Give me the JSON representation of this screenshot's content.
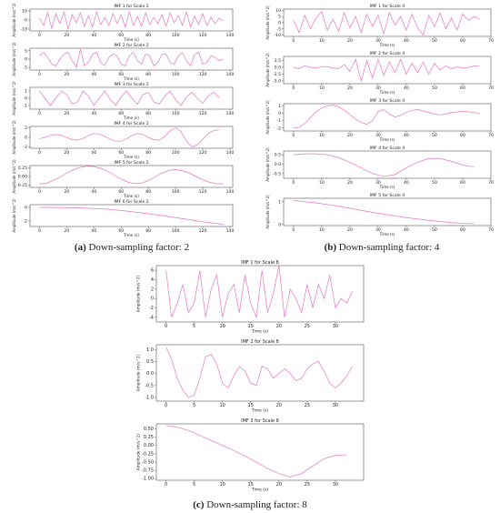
{
  "captions": [
    {
      "label": "(a)",
      "text": "Down-sampling factor: 2"
    },
    {
      "label": "(b)",
      "text": "Down-sampling factor: 4"
    },
    {
      "label": "(c)",
      "text": "Down-sampling factor: 8"
    }
  ],
  "chart_data": [
    {
      "type": "line",
      "title": "IMF 1 for Scale 2",
      "x_label": "Time (s)",
      "y_label": "Amplitude (m/s^2)",
      "color": "#e377c2",
      "x": [
        0,
        3,
        6,
        9,
        12,
        15,
        18,
        21,
        24,
        27,
        30,
        33,
        36,
        39,
        42,
        45,
        48,
        51,
        54,
        57,
        60,
        63,
        66,
        69,
        72,
        75,
        78,
        81,
        84,
        87,
        90,
        93,
        96,
        99,
        102,
        105,
        108,
        111,
        114,
        117,
        120,
        123,
        126,
        129,
        132,
        135
      ],
      "values": [
        2,
        -6,
        8,
        -9,
        7,
        -4,
        9,
        -10,
        6,
        -3,
        8,
        -7,
        5,
        -8,
        9,
        -5,
        3,
        -6,
        7,
        -4,
        6,
        -8,
        9,
        -6,
        4,
        -7,
        8,
        -5,
        3,
        -4,
        6,
        -7,
        8,
        -3,
        5,
        -6,
        9,
        -8,
        4,
        -5,
        7,
        -6,
        3,
        -4,
        2,
        -1
      ],
      "xlim": [
        -7,
        142
      ],
      "xticks": [
        0,
        20,
        40,
        60,
        80,
        100,
        120,
        140
      ],
      "ylim": [
        -12,
        12
      ],
      "yticks": [
        -10,
        0,
        10
      ]
    },
    {
      "type": "line",
      "title": "IMF 2 for Scale 2",
      "x_label": "Time (s)",
      "y_label": "Amplitude (m/s^2)",
      "color": "#e377c2",
      "x": [
        0,
        3,
        6,
        9,
        12,
        15,
        18,
        21,
        24,
        27,
        30,
        33,
        36,
        39,
        42,
        45,
        48,
        51,
        54,
        57,
        60,
        63,
        66,
        69,
        72,
        75,
        78,
        81,
        84,
        87,
        90,
        93,
        96,
        99,
        102,
        105,
        108,
        111,
        114,
        117,
        120,
        123,
        126,
        129,
        132,
        135
      ],
      "values": [
        2,
        4,
        1,
        -3,
        -4,
        0,
        3,
        4,
        -1,
        -5,
        6,
        -4,
        -2,
        3,
        4,
        -2,
        -4,
        1,
        3,
        2,
        -3,
        -4,
        2,
        4,
        -1,
        -3,
        3,
        2,
        -4,
        -2,
        3,
        3,
        -2,
        -3,
        2,
        4,
        -1,
        -4,
        3,
        4,
        -3,
        -2,
        2,
        1,
        -1,
        0
      ],
      "xlim": [
        -7,
        142
      ],
      "xticks": [
        0,
        20,
        40,
        60,
        80,
        100,
        120,
        140
      ],
      "ylim": [
        -6.5,
        6.5
      ],
      "yticks": [
        -5,
        0,
        5
      ]
    },
    {
      "type": "line",
      "title": "IMF 3 for Scale 2",
      "x_label": "Time (s)",
      "y_label": "Amplitude (m/s^2)",
      "color": "#e377c2",
      "x": [
        0,
        4,
        8,
        12,
        16,
        20,
        24,
        28,
        32,
        36,
        40,
        44,
        48,
        52,
        56,
        60,
        64,
        68,
        72,
        76,
        80,
        84,
        88,
        92,
        96,
        100,
        104,
        108,
        112,
        116,
        120,
        124,
        128,
        132
      ],
      "values": [
        1,
        0,
        -1,
        0,
        1,
        0.5,
        -0.8,
        -0.5,
        1,
        0.3,
        -1,
        0,
        1,
        -0.2,
        -1,
        0.2,
        1,
        0,
        -0.8,
        0.5,
        0.8,
        -0.5,
        -0.8,
        0.3,
        1,
        -0.2,
        -1,
        0.2,
        0.8,
        0,
        -0.7,
        0.3,
        0.8,
        0.1
      ],
      "xlim": [
        -7,
        142
      ],
      "xticks": [
        0,
        20,
        40,
        60,
        80,
        100,
        120,
        140
      ],
      "ylim": [
        -1.5,
        1.5
      ],
      "yticks": [
        -1,
        0,
        1
      ]
    },
    {
      "type": "line",
      "title": "IMF 4 for Scale 2",
      "x_label": "Time (s)",
      "y_label": "Amplitude (m/s^2)",
      "color": "#e377c2",
      "x": [
        0,
        4,
        8,
        12,
        16,
        20,
        24,
        28,
        32,
        36,
        40,
        44,
        48,
        52,
        56,
        60,
        64,
        68,
        72,
        76,
        80,
        84,
        88,
        92,
        96,
        100,
        104,
        108,
        112,
        116,
        120,
        124,
        128,
        132
      ],
      "values": [
        -0.3,
        0,
        0.4,
        0.6,
        0.4,
        0,
        -0.5,
        -0.6,
        -0.2,
        0.4,
        0.8,
        0.7,
        0.2,
        -0.4,
        -0.8,
        -0.8,
        -0.3,
        0.4,
        0.8,
        0.6,
        0,
        -0.5,
        -0.6,
        0.2,
        1.4,
        2,
        1.2,
        -0.8,
        -2,
        -1.6,
        -0.4,
        0.8,
        1.4,
        1.6
      ],
      "xlim": [
        -7,
        142
      ],
      "xticks": [
        0,
        20,
        40,
        60,
        80,
        100,
        120,
        140
      ],
      "ylim": [
        -2.3,
        2.3
      ],
      "yticks": [
        -2,
        0,
        2
      ]
    },
    {
      "type": "line",
      "title": "IMF 5 for Scale 2",
      "x_label": "Time (s)",
      "y_label": "Amplitude (m/s^2)",
      "color": "#e377c2",
      "x": [
        0,
        5,
        10,
        15,
        20,
        25,
        30,
        35,
        40,
        45,
        50,
        55,
        60,
        65,
        70,
        75,
        80,
        85,
        90,
        95,
        100,
        105,
        110,
        115,
        120,
        125,
        130,
        135
      ],
      "values": [
        -0.22,
        -0.2,
        -0.12,
        -0.02,
        0.1,
        0.2,
        0.27,
        0.3,
        0.29,
        0.24,
        0.15,
        0.04,
        -0.08,
        -0.17,
        -0.21,
        -0.2,
        -0.12,
        -0.01,
        0.1,
        0.18,
        0.2,
        0.17,
        0.1,
        0,
        -0.1,
        -0.17,
        -0.21,
        -0.22
      ],
      "xlim": [
        -7,
        142
      ],
      "xticks": [
        0,
        20,
        40,
        60,
        80,
        100,
        120,
        140
      ],
      "ylim": [
        -0.32,
        0.32
      ],
      "yticks": [
        {
          "value": -0.25,
          "label": "-0.25"
        },
        {
          "value": 0,
          "label": "0.00"
        },
        0.25
      ]
    },
    {
      "type": "line",
      "title": "IMF 6 for Scale 2",
      "x_label": "Time (s)",
      "y_label": "Amplitude (m/s^2)",
      "color": "#e377c2",
      "x": [
        0,
        15,
        30,
        45,
        60,
        75,
        90,
        105,
        120,
        135
      ],
      "values": [
        0,
        -0.02,
        -0.08,
        -0.2,
        -0.45,
        -0.8,
        -1.2,
        -1.65,
        -2.1,
        -2.5
      ],
      "xlim": [
        -7,
        142
      ],
      "xticks": [
        0,
        20,
        40,
        60,
        80,
        100,
        120,
        140
      ],
      "ylim": [
        -2.8,
        0.4
      ],
      "yticks": [
        -2,
        0
      ]
    },
    {
      "type": "line",
      "title": "IMF 1 for Scale 4",
      "x_label": "Time (s)",
      "y_label": "Amplitude (m/s^2)",
      "color": "#e377c2",
      "x": [
        0,
        2,
        4,
        6,
        8,
        10,
        12,
        14,
        16,
        18,
        20,
        22,
        24,
        26,
        28,
        30,
        32,
        34,
        36,
        38,
        40,
        42,
        44,
        46,
        48,
        50,
        52,
        54,
        56,
        58,
        60,
        62,
        64,
        66
      ],
      "values": [
        2,
        -8,
        6,
        -5,
        4,
        9,
        -6,
        3,
        -7,
        8,
        -4,
        5,
        -8,
        7,
        -3,
        6,
        -9,
        8,
        -2,
        5,
        -6,
        7,
        -4,
        -10,
        6,
        -3,
        8,
        -5,
        4,
        -6,
        7,
        2,
        5,
        3
      ],
      "xlim": [
        -3.5,
        70
      ],
      "xticks": [
        0,
        10,
        20,
        30,
        40,
        50,
        60,
        70
      ],
      "ylim": [
        -11,
        11
      ],
      "yticks": [
        -10,
        -5,
        0,
        5,
        10
      ]
    },
    {
      "type": "line",
      "title": "IMF 2 for Scale 4",
      "x_label": "Time (s)",
      "y_label": "Amplitude (m/s^2)",
      "color": "#e377c2",
      "x": [
        0,
        2,
        4,
        6,
        8,
        10,
        12,
        14,
        16,
        18,
        20,
        22,
        24,
        26,
        28,
        30,
        32,
        34,
        36,
        38,
        40,
        42,
        44,
        46,
        48,
        50,
        52,
        54,
        56,
        58,
        60,
        62,
        64,
        66
      ],
      "values": [
        0,
        -0.5,
        0.5,
        0,
        -0.3,
        0.3,
        0.2,
        -0.3,
        -0.5,
        1,
        -1.5,
        3,
        -5,
        2.5,
        -4,
        3,
        -3,
        2,
        -2,
        3,
        -2.5,
        1.5,
        -2,
        2,
        -2.5,
        1.5,
        -1,
        0.5,
        -0.5,
        0.2,
        -0.3,
        0,
        0.5,
        0.6
      ],
      "xlim": [
        -3.5,
        70
      ],
      "xticks": [
        0,
        10,
        20,
        30,
        40,
        50,
        60,
        70
      ],
      "ylim": [
        -6,
        4
      ],
      "yticks": [
        {
          "value": -5,
          "label": "-5.0"
        },
        -2.5,
        {
          "value": 0,
          "label": "0.0"
        },
        2.5
      ]
    },
    {
      "type": "line",
      "title": "IMF 3 for Scale 4",
      "x_label": "Time (s)",
      "y_label": "Amplitude (m/s^2)",
      "color": "#e377c2",
      "x": [
        0,
        2,
        4,
        6,
        8,
        10,
        12,
        14,
        16,
        18,
        20,
        22,
        24,
        26,
        28,
        30,
        32,
        34,
        36,
        38,
        40,
        42,
        44,
        46,
        48,
        50,
        52,
        54,
        56,
        58,
        60,
        62,
        64,
        66
      ],
      "values": [
        -2,
        -1.9,
        -1.4,
        -0.6,
        0.2,
        0.7,
        1,
        1.1,
        0.9,
        0.4,
        -0.2,
        -0.8,
        -1.2,
        -1.5,
        -1,
        0.2,
        0.5,
        -0.1,
        -0.5,
        -0.3,
        0.1,
        0.4,
        0.5,
        0.3,
        0.1,
        -0.1,
        -0.2,
        -0.1,
        0.1,
        0.2,
        0.3,
        0.2,
        0.1,
        0
      ],
      "xlim": [
        -3.5,
        70
      ],
      "xticks": [
        0,
        10,
        20,
        30,
        40,
        50,
        60,
        70
      ],
      "ylim": [
        -2.4,
        1.3
      ],
      "yticks": [
        -2,
        -1,
        0,
        1
      ]
    },
    {
      "type": "line",
      "title": "IMF 4 for Scale 4",
      "x_label": "Time (s)",
      "y_label": "Amplitude (m/s^2)",
      "color": "#e377c2",
      "x": [
        0,
        4,
        8,
        12,
        16,
        20,
        24,
        28,
        32,
        36,
        40,
        44,
        48,
        52,
        56,
        60,
        64
      ],
      "values": [
        0.5,
        0.55,
        0.55,
        0.5,
        0.35,
        0.1,
        -0.2,
        -0.5,
        -0.65,
        -0.55,
        -0.2,
        0.1,
        0.3,
        0.3,
        0.15,
        -0.05,
        -0.15
      ],
      "xlim": [
        -3.5,
        70
      ],
      "xticks": [
        0,
        10,
        20,
        30,
        40,
        50,
        60,
        70
      ],
      "ylim": [
        -0.75,
        0.7
      ],
      "yticks": [
        -0.5,
        {
          "value": 0,
          "label": "0.0"
        },
        0.5
      ]
    },
    {
      "type": "line",
      "title": "IMF 5 for Scale 4",
      "x_label": "Time (s)",
      "y_label": "Amplitude (m/s^2)",
      "color": "#e377c2",
      "x": [
        0,
        8,
        16,
        24,
        32,
        40,
        48,
        56,
        64
      ],
      "values": [
        1.05,
        0.95,
        0.8,
        0.62,
        0.45,
        0.3,
        0.18,
        0.08,
        0.03
      ],
      "xlim": [
        -3.5,
        70
      ],
      "xticks": [
        0,
        10,
        20,
        30,
        40,
        50,
        60,
        70
      ],
      "ylim": [
        -0.05,
        1.15
      ],
      "yticks": [
        0,
        1
      ]
    },
    {
      "type": "line",
      "title": "IMF 1 for Scale 8",
      "x_label": "Time (s)",
      "y_label": "Amplitude (m/s^2)",
      "color": "#e377c2",
      "x": [
        0,
        1,
        2,
        3,
        4,
        5,
        6,
        7,
        8,
        9,
        10,
        11,
        12,
        13,
        14,
        15,
        16,
        17,
        18,
        19,
        20,
        21,
        22,
        23,
        24,
        25,
        26,
        27,
        28,
        29,
        30,
        31,
        32,
        33
      ],
      "values": [
        6,
        -4,
        -1,
        3,
        -3,
        -1,
        6,
        -4,
        2,
        5,
        -4,
        1,
        3,
        -3,
        5,
        -1,
        -4,
        6,
        -3,
        1,
        7,
        -4,
        2,
        0,
        -3,
        3,
        -2,
        3,
        0,
        5,
        -2,
        0,
        -1,
        1.5
      ],
      "xlim": [
        -1.7,
        35
      ],
      "xticks": [
        0,
        5,
        10,
        15,
        20,
        25,
        30
      ],
      "ylim": [
        -5,
        7
      ],
      "yticks": [
        -4,
        -2,
        0,
        2,
        4,
        6
      ]
    },
    {
      "type": "line",
      "title": "IMF 2 for Scale 8",
      "x_label": "Time (s)",
      "y_label": "Amplitude (m/s^2)",
      "color": "#e377c2",
      "x": [
        0,
        1,
        2,
        3,
        4,
        5,
        6,
        7,
        8,
        9,
        10,
        11,
        12,
        13,
        14,
        15,
        16,
        17,
        18,
        19,
        20,
        21,
        22,
        23,
        24,
        25,
        26,
        27,
        28,
        29,
        30,
        31,
        32,
        33
      ],
      "values": [
        1.1,
        0.6,
        -0.2,
        -0.7,
        -1,
        -0.9,
        -0.2,
        0.7,
        0.8,
        0.4,
        -0.4,
        -0.6,
        -0.1,
        0.3,
        0.1,
        -0.4,
        -0.5,
        0.3,
        0.2,
        -0.2,
        0,
        0.2,
        0,
        -0.3,
        -0.2,
        0.2,
        0.4,
        0.5,
        0.1,
        -0.4,
        -0.6,
        -0.4,
        -0.1,
        0.3
      ],
      "xlim": [
        -1.7,
        35
      ],
      "xticks": [
        0,
        5,
        10,
        15,
        20,
        25,
        30
      ],
      "ylim": [
        -1.15,
        1.2
      ],
      "yticks": [
        {
          "value": -1,
          "label": "-1.0"
        },
        -0.5,
        {
          "value": 0,
          "label": "0.0"
        },
        0.5,
        {
          "value": 1,
          "label": "1.0"
        }
      ]
    },
    {
      "type": "line",
      "title": "IMF 3 for Scale 8",
      "x_label": "Time (s)",
      "y_label": "Amplitude (m/s^2)",
      "color": "#e377c2",
      "x": [
        0,
        2,
        4,
        6,
        8,
        10,
        12,
        14,
        16,
        18,
        20,
        22,
        24,
        26,
        28,
        30,
        32
      ],
      "values": [
        0.6,
        0.55,
        0.45,
        0.3,
        0.15,
        0,
        -0.15,
        -0.32,
        -0.5,
        -0.7,
        -0.85,
        -0.95,
        -0.85,
        -0.62,
        -0.4,
        -0.3,
        -0.28
      ],
      "xlim": [
        -1.7,
        35
      ],
      "xticks": [
        0,
        5,
        10,
        15,
        20,
        25,
        30
      ],
      "ylim": [
        -1.05,
        0.65
      ],
      "yticks": [
        {
          "value": -1,
          "label": "-1.00"
        },
        -0.75,
        {
          "value": -0.5,
          "label": "-0.50"
        },
        -0.25,
        {
          "value": 0,
          "label": "0.00"
        },
        0.25,
        {
          "value": 0.5,
          "label": "0.50"
        }
      ]
    }
  ]
}
